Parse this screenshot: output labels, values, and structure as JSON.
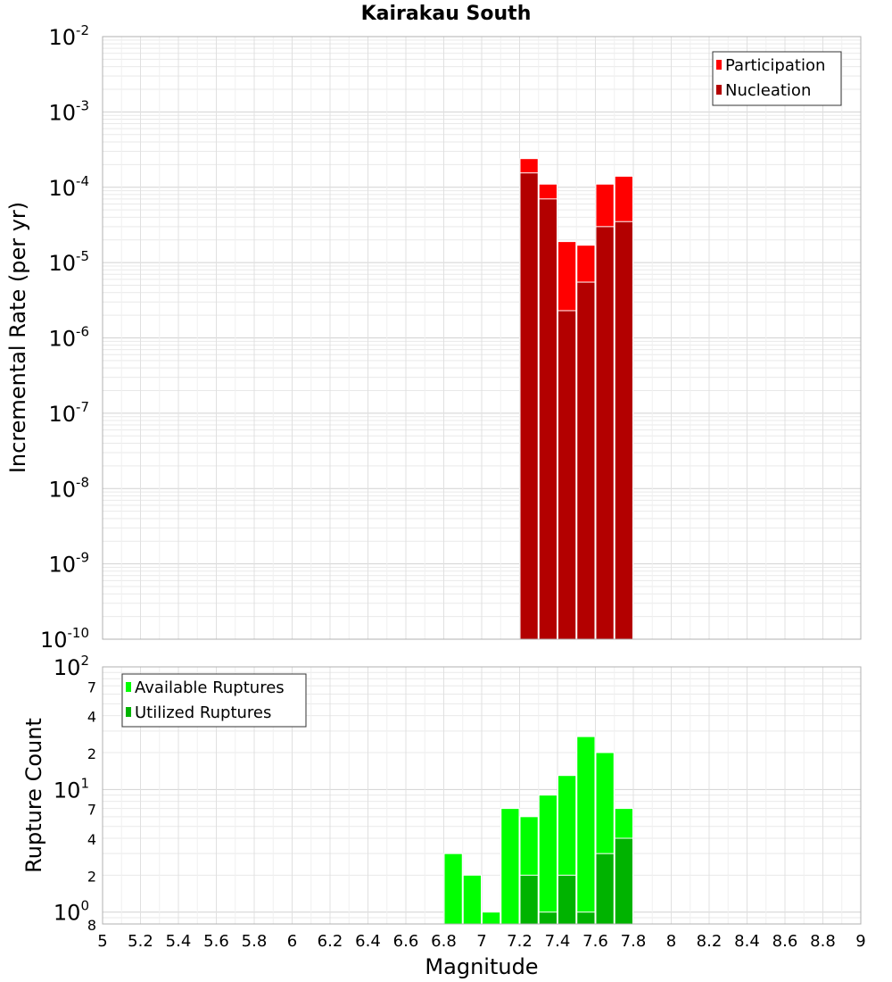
{
  "chart_data": [
    {
      "type": "bar",
      "title": "Kairakau South",
      "xlabel": "",
      "ylabel": "Incremental Rate (per yr)",
      "yscale": "log",
      "ylim": [
        1e-10,
        0.01
      ],
      "xlim": [
        5,
        9
      ],
      "bin_width": 0.1,
      "y_tick_labels": [
        {
          "value": 0.01,
          "base": "10",
          "exp": "-2"
        },
        {
          "value": 0.001,
          "base": "10",
          "exp": "-3"
        },
        {
          "value": 0.0001,
          "base": "10",
          "exp": "-4"
        },
        {
          "value": 1e-05,
          "base": "10",
          "exp": "-5"
        },
        {
          "value": 1e-06,
          "base": "10",
          "exp": "-6"
        },
        {
          "value": 1e-07,
          "base": "10",
          "exp": "-7"
        },
        {
          "value": 1e-08,
          "base": "10",
          "exp": "-8"
        },
        {
          "value": 1e-09,
          "base": "10",
          "exp": "-9"
        },
        {
          "value": 1e-10,
          "base": "10",
          "exp": "-10"
        }
      ],
      "legend": {
        "placement": "top-right",
        "entries": [
          "Participation",
          "Nucleation"
        ]
      },
      "grid": true,
      "x": [
        7.25,
        7.35,
        7.45,
        7.55,
        7.65,
        7.75
      ],
      "series": [
        {
          "name": "Participation",
          "color": "#ff0000",
          "values": [
            0.00024,
            0.00011,
            1.9e-05,
            1.7e-05,
            0.00011,
            0.00014
          ]
        },
        {
          "name": "Nucleation",
          "color": "#b30000",
          "values": [
            0.000155,
            7e-05,
            2.3e-06,
            5.5e-06,
            3e-05,
            3.5e-05
          ]
        }
      ]
    },
    {
      "type": "bar",
      "title": "",
      "xlabel": "Magnitude",
      "ylabel": "Rupture Count",
      "yscale": "log",
      "ylim": [
        0.8,
        100
      ],
      "xlim": [
        5,
        9
      ],
      "bin_width": 0.1,
      "x_tick_labels": [
        "5",
        "5.2",
        "5.4",
        "5.6",
        "5.8",
        "6",
        "6.2",
        "6.4",
        "6.6",
        "6.8",
        "7",
        "7.2",
        "7.4",
        "7.6",
        "7.8",
        "8",
        "8.2",
        "8.4",
        "8.6",
        "8.8",
        "9"
      ],
      "y_tick_labels": [
        {
          "value": 100,
          "base": "10",
          "exp": "2"
        },
        {
          "value": 70,
          "base": "7",
          "exp": ""
        },
        {
          "value": 40,
          "base": "4",
          "exp": ""
        },
        {
          "value": 20,
          "base": "2",
          "exp": ""
        },
        {
          "value": 10,
          "base": "10",
          "exp": "1"
        },
        {
          "value": 7,
          "base": "7",
          "exp": ""
        },
        {
          "value": 4,
          "base": "4",
          "exp": ""
        },
        {
          "value": 2,
          "base": "2",
          "exp": ""
        },
        {
          "value": 1,
          "base": "10",
          "exp": "0"
        },
        {
          "value": 0.8,
          "base": "8",
          "exp": ""
        }
      ],
      "legend": {
        "placement": "top-left",
        "entries": [
          "Available Ruptures",
          "Utilized Ruptures"
        ]
      },
      "grid": true,
      "x": [
        6.85,
        6.95,
        7.05,
        7.15,
        7.25,
        7.35,
        7.45,
        7.55,
        7.65,
        7.75
      ],
      "series": [
        {
          "name": "Available Ruptures",
          "color": "#00ff00",
          "values": [
            3,
            2,
            1,
            7,
            6,
            9,
            13,
            27,
            20,
            7
          ]
        },
        {
          "name": "Utilized Ruptures",
          "color": "#00b300",
          "values": [
            null,
            null,
            null,
            null,
            2,
            1,
            2,
            1,
            3,
            4
          ]
        }
      ]
    }
  ]
}
